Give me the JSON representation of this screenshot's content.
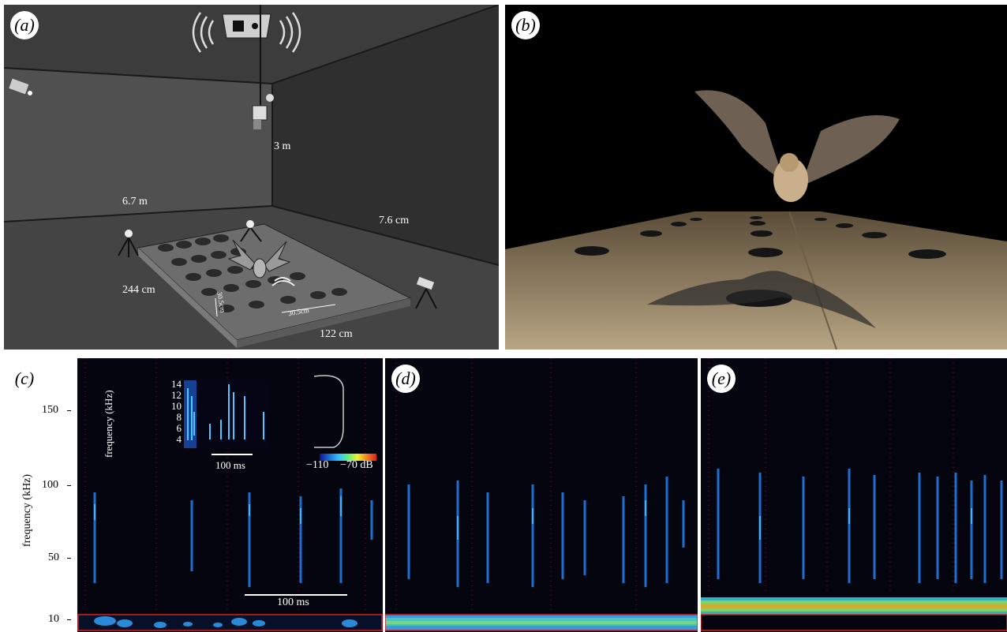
{
  "panels": {
    "a": {
      "label": "(a)",
      "dims": {
        "height": "3 m",
        "room_width": "6.7 m",
        "room_depth": "7.6 cm",
        "board_length": "244 cm",
        "board_width": "122 cm",
        "spacing_v": "30.5cm",
        "spacing_h": "30.5cm"
      }
    },
    "b": {
      "label": "(b)"
    },
    "c": {
      "label": "(c)",
      "y_axis_label": "frequency (kHz)",
      "y_ticks": [
        "150",
        "100",
        "50",
        "10"
      ],
      "scale_bar": "100 ms",
      "inset": {
        "y_axis_label": "frequency (kHz)",
        "y_ticks": [
          "14",
          "12",
          "10",
          "8",
          "6",
          "4"
        ],
        "scale_bar": "100 ms",
        "colorbar_min": "−110",
        "colorbar_max": "−70 dB"
      }
    },
    "d": {
      "label": "(d)"
    },
    "e": {
      "label": "(e)"
    }
  },
  "colors": {
    "spectrogram_bg": "#050510",
    "call": "#1a6fd0",
    "call_core": "#4ec9ff",
    "highlight_box": "#d42020",
    "room_dark": "#3a3a3a",
    "floor_tan": "#a08a6a"
  }
}
